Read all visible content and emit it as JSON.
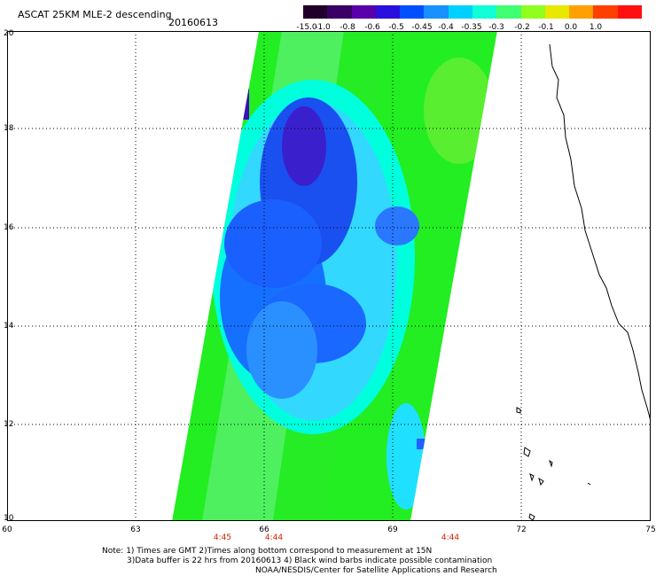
{
  "header": {
    "title": "ASCAT 25KM MLE-2 descending",
    "date": "20160613"
  },
  "colorbar": {
    "labels": [
      "-15.0",
      "-1.0",
      "-0.8",
      "-0.6",
      "-0.5",
      "-0.45",
      "-0.4",
      "-0.35",
      "-0.3",
      "-0.2",
      "-0.1",
      "0.0",
      "1.0"
    ],
    "colors": [
      "#20002a",
      "#3a0066",
      "#5a00aa",
      "#2a10dd",
      "#0050ff",
      "#1890ff",
      "#00d0ff",
      "#10ffd8",
      "#40ff70",
      "#90ff20",
      "#e8e800",
      "#ffa000",
      "#ff4000",
      "#ff1010"
    ]
  },
  "map": {
    "lat_labels": [
      "20",
      "18",
      "16",
      "14",
      "12",
      "10"
    ],
    "lon_labels": [
      "60",
      "63",
      "66",
      "69",
      "72",
      "75"
    ],
    "time_labels": [
      "4:45",
      "4:44",
      "4:44"
    ]
  },
  "footer": {
    "line1": "Note: 1) Times are GMT 2)Times along bottom correspond to measurement at 15N",
    "line2": "3)Data buffer is 22 hrs from 20160613 4) Black wind barbs indicate possible contamination",
    "line3": "NOAA/NESDIS/Center for Satellite Applications and Research"
  }
}
